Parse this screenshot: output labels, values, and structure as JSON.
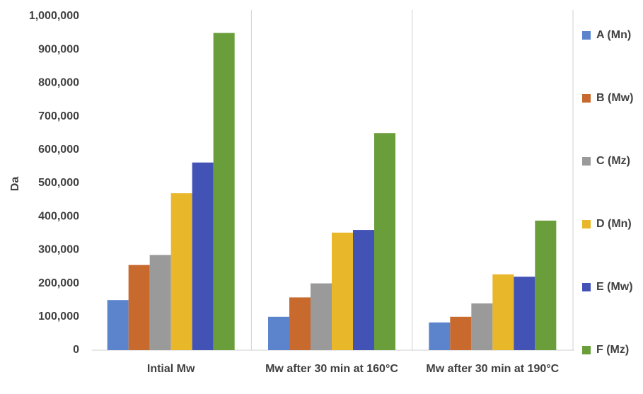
{
  "chart_data": {
    "type": "bar",
    "y_label": "Da",
    "categories": [
      "Intial Mw",
      "Mw after 30 min at 160°C",
      "Mw after 30 min at 190°C"
    ],
    "series": [
      {
        "name": "A (Mn)",
        "color": "#5b84cc",
        "values": [
          150000,
          100000,
          83000
        ]
      },
      {
        "name": "B (Mw)",
        "color": "#c8692e",
        "values": [
          255000,
          158000,
          100000
        ]
      },
      {
        "name": "C (Mz)",
        "color": "#9a9a9a",
        "values": [
          285000,
          200000,
          140000
        ]
      },
      {
        "name": "D (Mn)",
        "color": "#e8b82a",
        "values": [
          470000,
          352000,
          227000
        ]
      },
      {
        "name": "E (Mw)",
        "color": "#4352b5",
        "values": [
          562000,
          360000,
          220000
        ]
      },
      {
        "name": "F (Mz)",
        "color": "#6a9e3a",
        "values": [
          950000,
          650000,
          388000
        ]
      }
    ],
    "ylim": [
      0,
      1000000
    ],
    "yticks": [
      0,
      {
        "value": 100000,
        "label": "100,000"
      },
      {
        "value": 200000,
        "label": "200,000"
      },
      {
        "value": 300000,
        "label": "300,000"
      },
      {
        "value": 400000,
        "label": "400,000"
      },
      {
        "value": 500000,
        "label": "500,000"
      },
      {
        "value": 600000,
        "label": "600,000"
      },
      {
        "value": 700000,
        "label": "700,000"
      },
      {
        "value": 800000,
        "label": "800,000"
      },
      {
        "value": 900000,
        "label": "900,000"
      },
      {
        "value": 1000000,
        "label": "1,000,000"
      }
    ],
    "legend": "right"
  }
}
